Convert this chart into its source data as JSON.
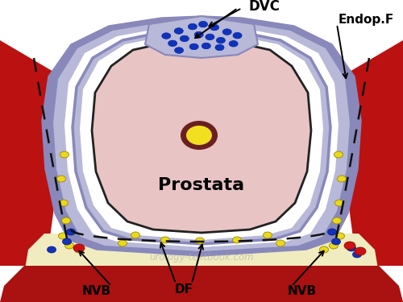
{
  "background": "#ffffff",
  "prostate_color": "#e8c4c4",
  "prostate_border": "#111111",
  "fascia_dark": "#8888bb",
  "fascia_light": "#b8b8d8",
  "fascia_white": "#e8e8f0",
  "urethra_yellow": "#f0e020",
  "urethra_ring": "#6a2020",
  "dvc_blue": "#1133bb",
  "nvb_yellow": "#e8d820",
  "nvb_blue": "#1133bb",
  "nvb_red": "#cc1111",
  "red_muscle": "#bb1111",
  "rectum_cream": "#f0ecc0",
  "rectum_dark": "#aa1111",
  "dashed_color": "#111111",
  "label_dvc": "DVC",
  "label_endop": "Endop.F",
  "label_prostata": "Prostata",
  "label_nvb_left": "NVB",
  "label_df": "DF",
  "label_nvb_right": "NVB",
  "watermark": "urology-textbook.com"
}
